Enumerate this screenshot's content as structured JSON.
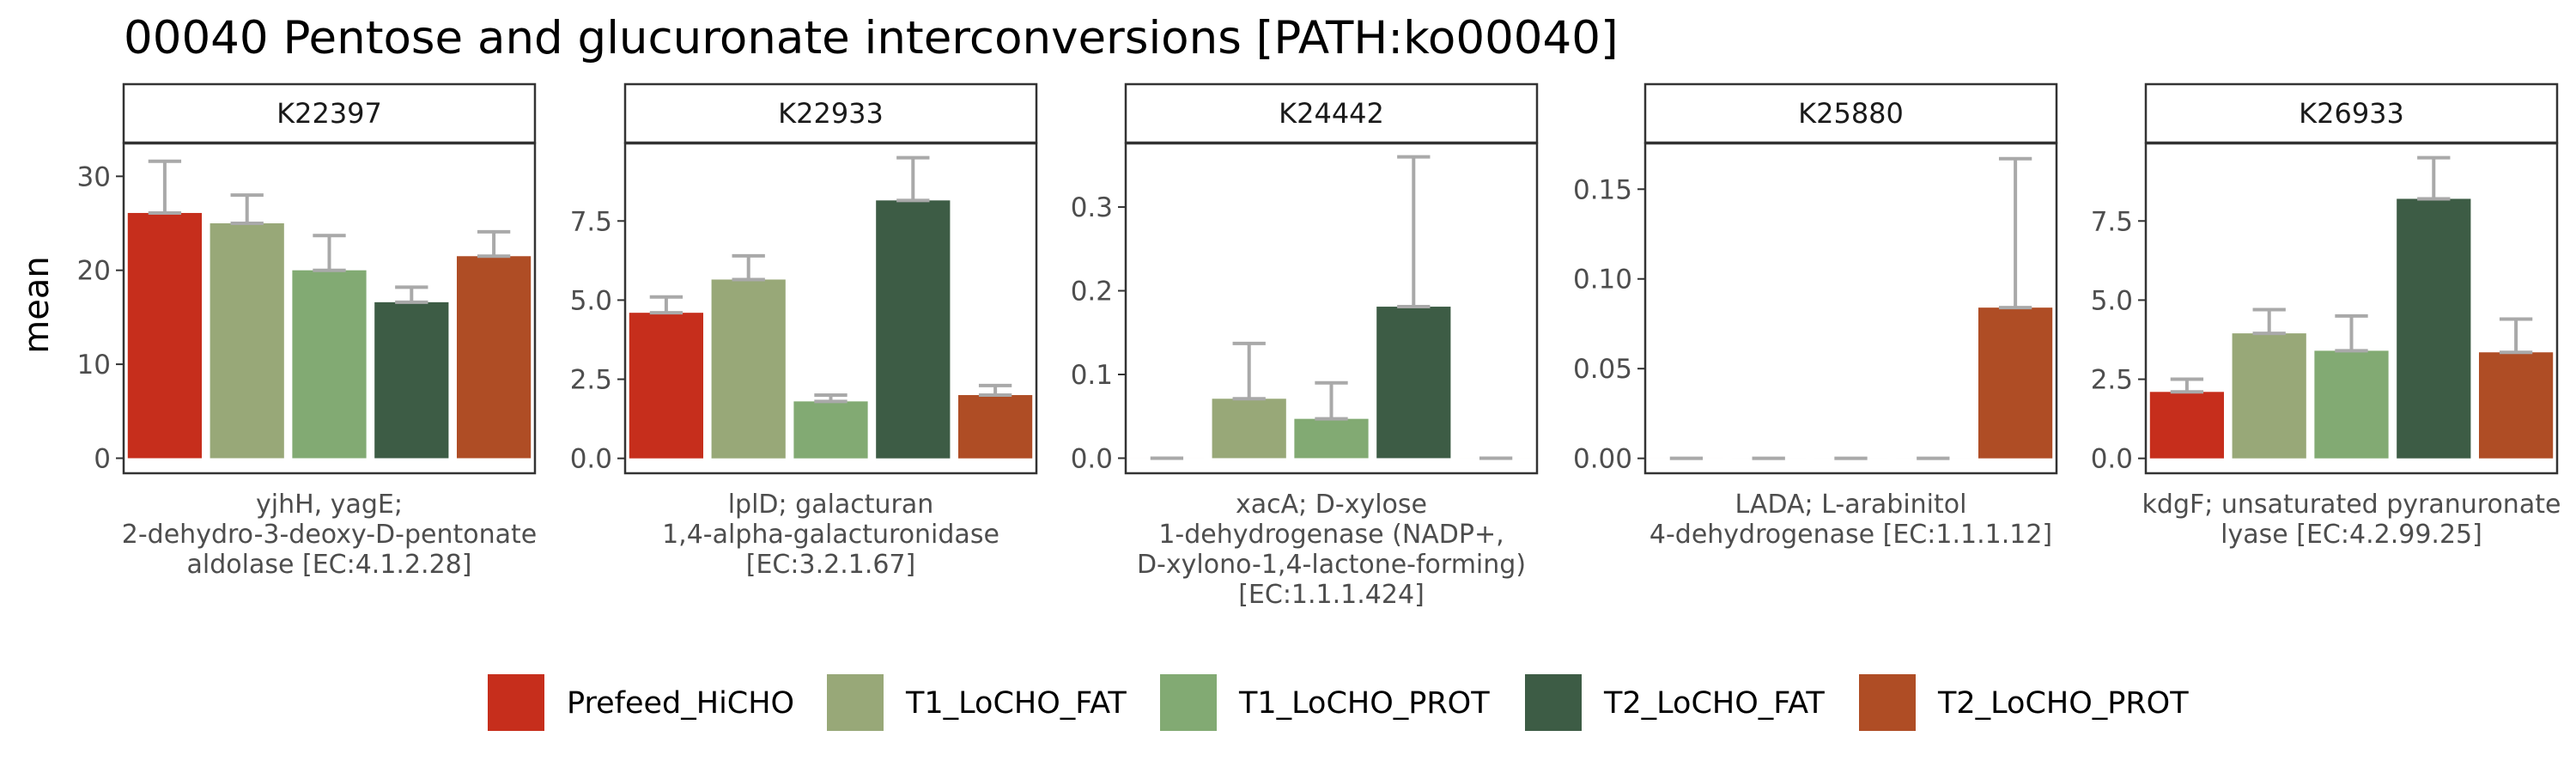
{
  "chart_data": {
    "type": "bar",
    "title": "00040 Pentose and glucuronate interconversions [PATH:ko00040]",
    "ylabel": "mean",
    "legend": {
      "position": "bottom",
      "entries": [
        {
          "name": "Prefeed_HiCHO",
          "color": "#C62E1C"
        },
        {
          "name": "T1_LoCHO_FAT",
          "color": "#98A878"
        },
        {
          "name": "T1_LoCHO_PROT",
          "color": "#82AA73"
        },
        {
          "name": "T2_LoCHO_FAT",
          "color": "#3D5C45"
        },
        {
          "name": "T2_LoCHO_PROT",
          "color": "#AF4D25"
        }
      ]
    },
    "error_bar_color": "#A9A9A9",
    "panels": [
      {
        "strip": "K22397",
        "xlabel": [
          "yjhH, yagE;",
          "2-dehydro-3-deoxy-D-pentonate",
          "aldolase [EC:4.1.2.28]"
        ],
        "ylim": [
          -1.6,
          33.5
        ],
        "yticks": [
          0,
          10,
          20,
          30
        ],
        "ytick_labels": [
          "0",
          "10",
          "20",
          "30"
        ],
        "values": [
          26.1,
          25.0,
          20.0,
          16.6,
          21.5
        ],
        "errors_upper": [
          31.6,
          28.0,
          23.7,
          18.2,
          24.1
        ]
      },
      {
        "strip": "K22933",
        "xlabel": [
          "lplD; galacturan",
          "1,4-alpha-galacturonidase",
          "[EC:3.2.1.67]"
        ],
        "ylim": [
          -0.47,
          9.95
        ],
        "yticks": [
          0,
          2.5,
          5,
          7.5
        ],
        "ytick_labels": [
          "0.0",
          "2.5",
          "5.0",
          "7.5"
        ],
        "values": [
          4.6,
          5.65,
          1.8,
          8.15,
          2.0
        ],
        "errors_upper": [
          5.1,
          6.4,
          2.0,
          9.5,
          2.3
        ]
      },
      {
        "strip": "K24442",
        "xlabel": [
          "xacA; D-xylose",
          "1-dehydrogenase (NADP+,",
          "D-xylono-1,4-lactone-forming)",
          "[EC:1.1.1.424]"
        ],
        "ylim": [
          -0.018,
          0.376
        ],
        "yticks": [
          0,
          0.1,
          0.2,
          0.3
        ],
        "ytick_labels": [
          "0.0",
          "0.1",
          "0.2",
          "0.3"
        ],
        "values": [
          0,
          0.071,
          0.047,
          0.181,
          0
        ],
        "errors_upper": [
          0,
          0.137,
          0.09,
          0.36,
          0
        ]
      },
      {
        "strip": "K25880",
        "xlabel": [
          "LADA; L-arabinitol",
          "4-dehydrogenase [EC:1.1.1.12]"
        ],
        "ylim": [
          -0.0083,
          0.1755
        ],
        "yticks": [
          0,
          0.05,
          0.1,
          0.15
        ],
        "ytick_labels": [
          "0.00",
          "0.05",
          "0.10",
          "0.15"
        ],
        "values": [
          0,
          0,
          0,
          0,
          0.084
        ],
        "errors_upper": [
          0,
          0,
          0,
          0,
          0.167
        ]
      },
      {
        "strip": "K26933",
        "xlabel": [
          "kdgF; unsaturated pyranuronate",
          "lyase [EC:4.2.99.25]"
        ],
        "ylim": [
          -0.47,
          9.95
        ],
        "yticks": [
          0,
          2.5,
          5,
          7.5
        ],
        "ytick_labels": [
          "0.0",
          "2.5",
          "5.0",
          "7.5"
        ],
        "values": [
          2.1,
          3.95,
          3.4,
          8.2,
          3.35
        ],
        "errors_upper": [
          2.5,
          4.7,
          4.5,
          9.5,
          4.4
        ]
      }
    ]
  }
}
